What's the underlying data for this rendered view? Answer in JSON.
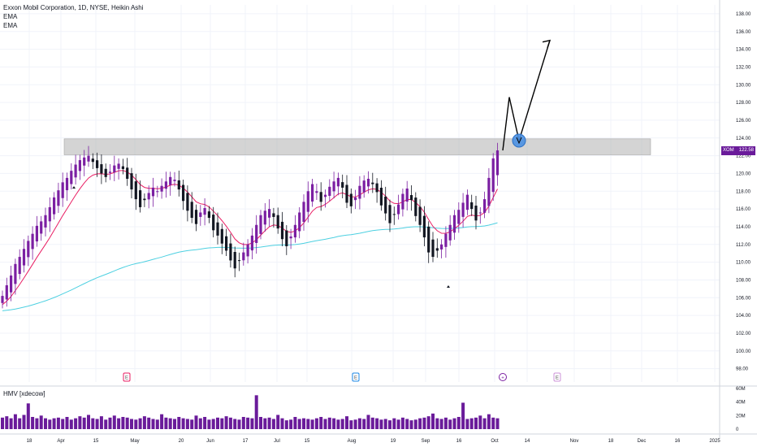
{
  "header": {
    "title": "Exxon Mobil Corporation, 1D, NYSE, Heikin Ashi",
    "indicators": [
      "EMA",
      "EMA"
    ]
  },
  "volume_pane": {
    "label": "HMV [xdecow]"
  },
  "price_tag": {
    "symbol": "XOM",
    "value": "122.58"
  },
  "event_markers": [
    {
      "label": "E",
      "x": "Apr 29"
    },
    {
      "label": "E",
      "x": "Aug 2"
    },
    {
      "label": "+",
      "x": "Oct 4"
    },
    {
      "label": "E",
      "x": "Nov 1"
    }
  ],
  "colors": {
    "candle": "#7b1fa2",
    "candle_down": "#131722",
    "ema_fast": "#e91e63",
    "ema_slow": "#4dd0e1",
    "zone": "#b0b0b0",
    "projection": "#000000",
    "marker_circle": "#4a90e2",
    "volume": "#6a1b9a",
    "price_tag": "#6a1b9a"
  },
  "chart_data": [
    {
      "type": "candlestick",
      "series_style": "Heikin Ashi",
      "y_axis_ticks": [
        "138.00",
        "136.00",
        "134.00",
        "132.00",
        "130.00",
        "128.00",
        "126.00",
        "124.00",
        "122.00",
        "120.00",
        "118.00",
        "116.00",
        "114.00",
        "112.00",
        "110.00",
        "108.00",
        "106.00",
        "104.00",
        "102.00",
        "100.00",
        "98.00"
      ],
      "x_axis_ticks": [
        "18",
        "Apr",
        "15",
        "May",
        "20",
        "Jun",
        "17",
        "Jul",
        "15",
        "Aug",
        "19",
        "Sep",
        "16",
        "Oct",
        "14",
        "Nov",
        "18",
        "Dec",
        "16",
        "2025"
      ],
      "ylim": [
        96.5,
        139
      ],
      "close": [
        106.2,
        107.4,
        108.5,
        109.8,
        110.6,
        111.5,
        112.4,
        113.2,
        114.1,
        114.6,
        115.3,
        116.2,
        117.3,
        118.1,
        119.0,
        119.5,
        120.3,
        121.0,
        121.5,
        121.8,
        122.0,
        121.3,
        120.6,
        120.0,
        119.6,
        120.2,
        120.9,
        121.1,
        120.5,
        119.4,
        118.2,
        117.1,
        116.2,
        117.0,
        117.8,
        118.4,
        118.0,
        118.6,
        119.1,
        119.6,
        119.3,
        118.2,
        116.9,
        115.8,
        115.0,
        114.3,
        115.6,
        116.1,
        115.0,
        113.6,
        113.0,
        112.1,
        111.3,
        110.2,
        109.3,
        110.2,
        111.1,
        112.0,
        113.0,
        114.2,
        115.3,
        115.8,
        116.0,
        115.1,
        113.8,
        112.6,
        111.8,
        112.9,
        114.2,
        115.6,
        116.8,
        118.0,
        118.8,
        118.0,
        116.8,
        117.6,
        118.5,
        119.1,
        119.5,
        118.4,
        116.7,
        116.3,
        117.3,
        118.6,
        119.2,
        119.4,
        118.8,
        117.9,
        116.4,
        115.5,
        114.4,
        115.4,
        116.5,
        117.7,
        118.3,
        117.0,
        115.2,
        114.2,
        112.8,
        111.1,
        110.6,
        111.3,
        112.0,
        113.2,
        114.2,
        115.3,
        115.9,
        116.7,
        117.6,
        116.0,
        114.7,
        115.6,
        117.1,
        119.5,
        121.7,
        122.6
      ],
      "earnings_points": [
        "Apr 29",
        "Aug 2",
        "Nov 1"
      ],
      "resistance_zone": [
        122.1,
        123.9
      ],
      "indicators": [
        "EMA",
        "EMA"
      ],
      "projected_path": [
        {
          "x": "Oct 4",
          "y": 122.6
        },
        {
          "x": "Oct 7",
          "y": 128.6
        },
        {
          "x": "Oct 9",
          "y": 123.7
        },
        {
          "x": "Oct 17",
          "y": 135.0
        }
      ],
      "last_price": 122.58
    },
    {
      "type": "bar",
      "title": "HMV [xdecow]",
      "y_axis_ticks": [
        "60M",
        "40M",
        "20M",
        "0"
      ],
      "ylim": [
        0,
        60
      ],
      "values": [
        17,
        19,
        16,
        22,
        16,
        21,
        38,
        18,
        16,
        20,
        16,
        14,
        16,
        17,
        15,
        18,
        14,
        16,
        19,
        17,
        21,
        16,
        15,
        19,
        14,
        17,
        20,
        16,
        18,
        17,
        15,
        14,
        16,
        19,
        17,
        15,
        14,
        22,
        17,
        16,
        15,
        18,
        16,
        15,
        14,
        20,
        16,
        18,
        14,
        15,
        17,
        16,
        19,
        17,
        15,
        14,
        18,
        17,
        16,
        50,
        18,
        16,
        17,
        15,
        21,
        16,
        13,
        14,
        18,
        15,
        16,
        15,
        14,
        16,
        18,
        15,
        17,
        16,
        14,
        15,
        19,
        13,
        14,
        16,
        15,
        21,
        17,
        16,
        14,
        15,
        13,
        16,
        14,
        17,
        15,
        13,
        14,
        16,
        17,
        19,
        23,
        16,
        15,
        17,
        14,
        16,
        18,
        39,
        15,
        16,
        17,
        20,
        16,
        22,
        17,
        16
      ]
    }
  ]
}
